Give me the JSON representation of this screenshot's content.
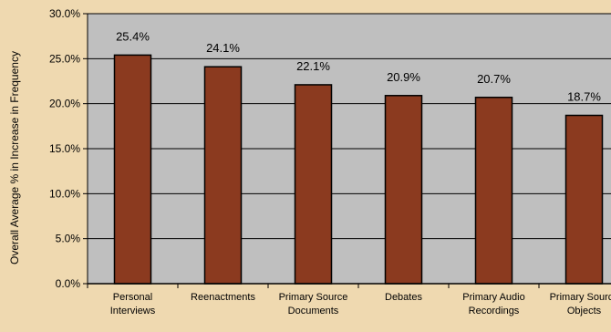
{
  "chart_data": {
    "type": "bar",
    "title": "",
    "xlabel": "",
    "ylabel": "Overall Average % in Increase in Frequency",
    "ylim": [
      0,
      30
    ],
    "yticks": [
      0,
      5,
      10,
      15,
      20,
      25,
      30
    ],
    "ytick_labels": [
      "0.0%",
      "5.0%",
      "10.0%",
      "15.0%",
      "20.0%",
      "25.0%",
      "30.0%"
    ],
    "categories": [
      [
        "Personal",
        "Interviews"
      ],
      [
        "Reenactments"
      ],
      [
        "Primary Source",
        "Documents"
      ],
      [
        "Debates"
      ],
      [
        "Primary Audio",
        "Recordings"
      ],
      [
        "Primary Source",
        "Objects"
      ]
    ],
    "values": [
      25.4,
      24.1,
      22.1,
      20.9,
      20.7,
      18.7
    ],
    "value_labels": [
      "25.4%",
      "24.1%",
      "22.1%",
      "20.9%",
      "20.7%",
      "18.7%"
    ],
    "grid": true,
    "legend": "none",
    "colors": {
      "background": "#EFD9B0",
      "plot_area": "#BFBFBF",
      "bar": "#8B3A1F",
      "bar_edge": "#000000",
      "grid": "#000000"
    }
  }
}
